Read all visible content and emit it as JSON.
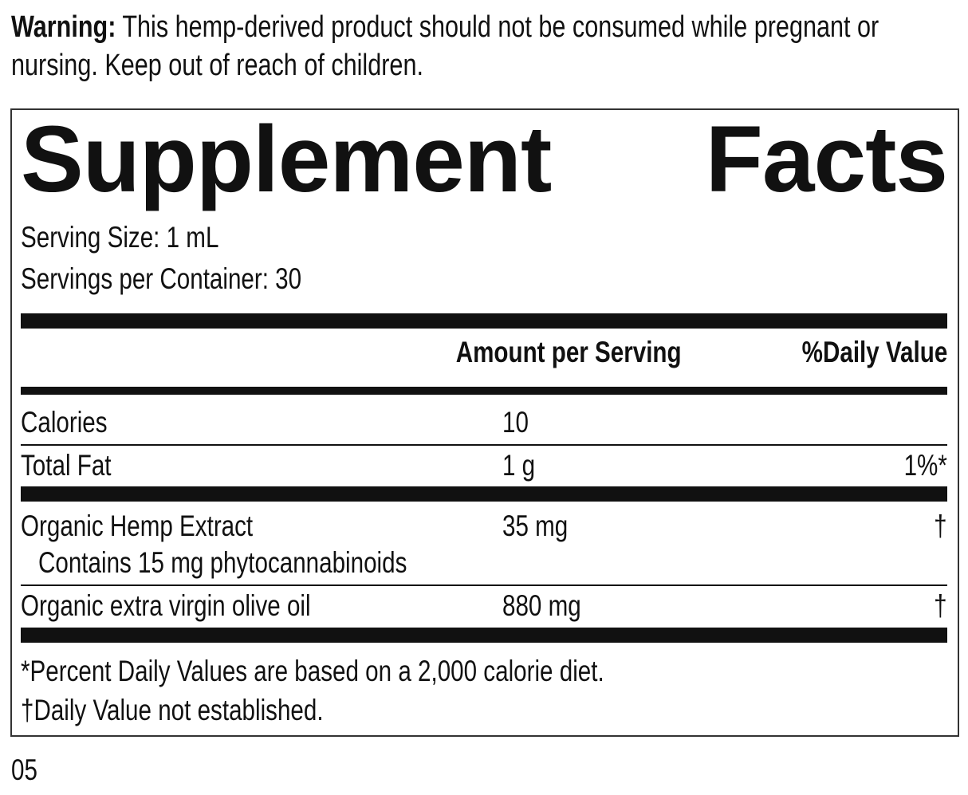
{
  "warning": {
    "label": "Warning:",
    "text": "This hemp-derived product should not be consumed while pregnant or nursing. Keep out of reach of children."
  },
  "panel": {
    "title": "Supplement Facts",
    "serving_size": "Serving Size: 1 mL",
    "servings_per_container": "Servings per Container: 30",
    "header": {
      "amount": "Amount per Serving",
      "daily_value": "%Daily Value"
    },
    "rows": [
      {
        "name": "Calories",
        "amount": "10"
      },
      {
        "name": "Total Fat",
        "amount": "1 g",
        "daily_value": "1%*"
      },
      {
        "name": "Organic Hemp Extract",
        "note": "Contains 15 mg phytocannabinoids",
        "amount": "35 mg",
        "daily_value": "†"
      },
      {
        "name": "Organic extra virgin olive oil",
        "amount": "880 mg",
        "daily_value": "†"
      }
    ],
    "footnotes": [
      "*Percent Daily Values are based on a 2,000 calorie diet.",
      "†Daily Value not established."
    ]
  },
  "page_number": "05"
}
